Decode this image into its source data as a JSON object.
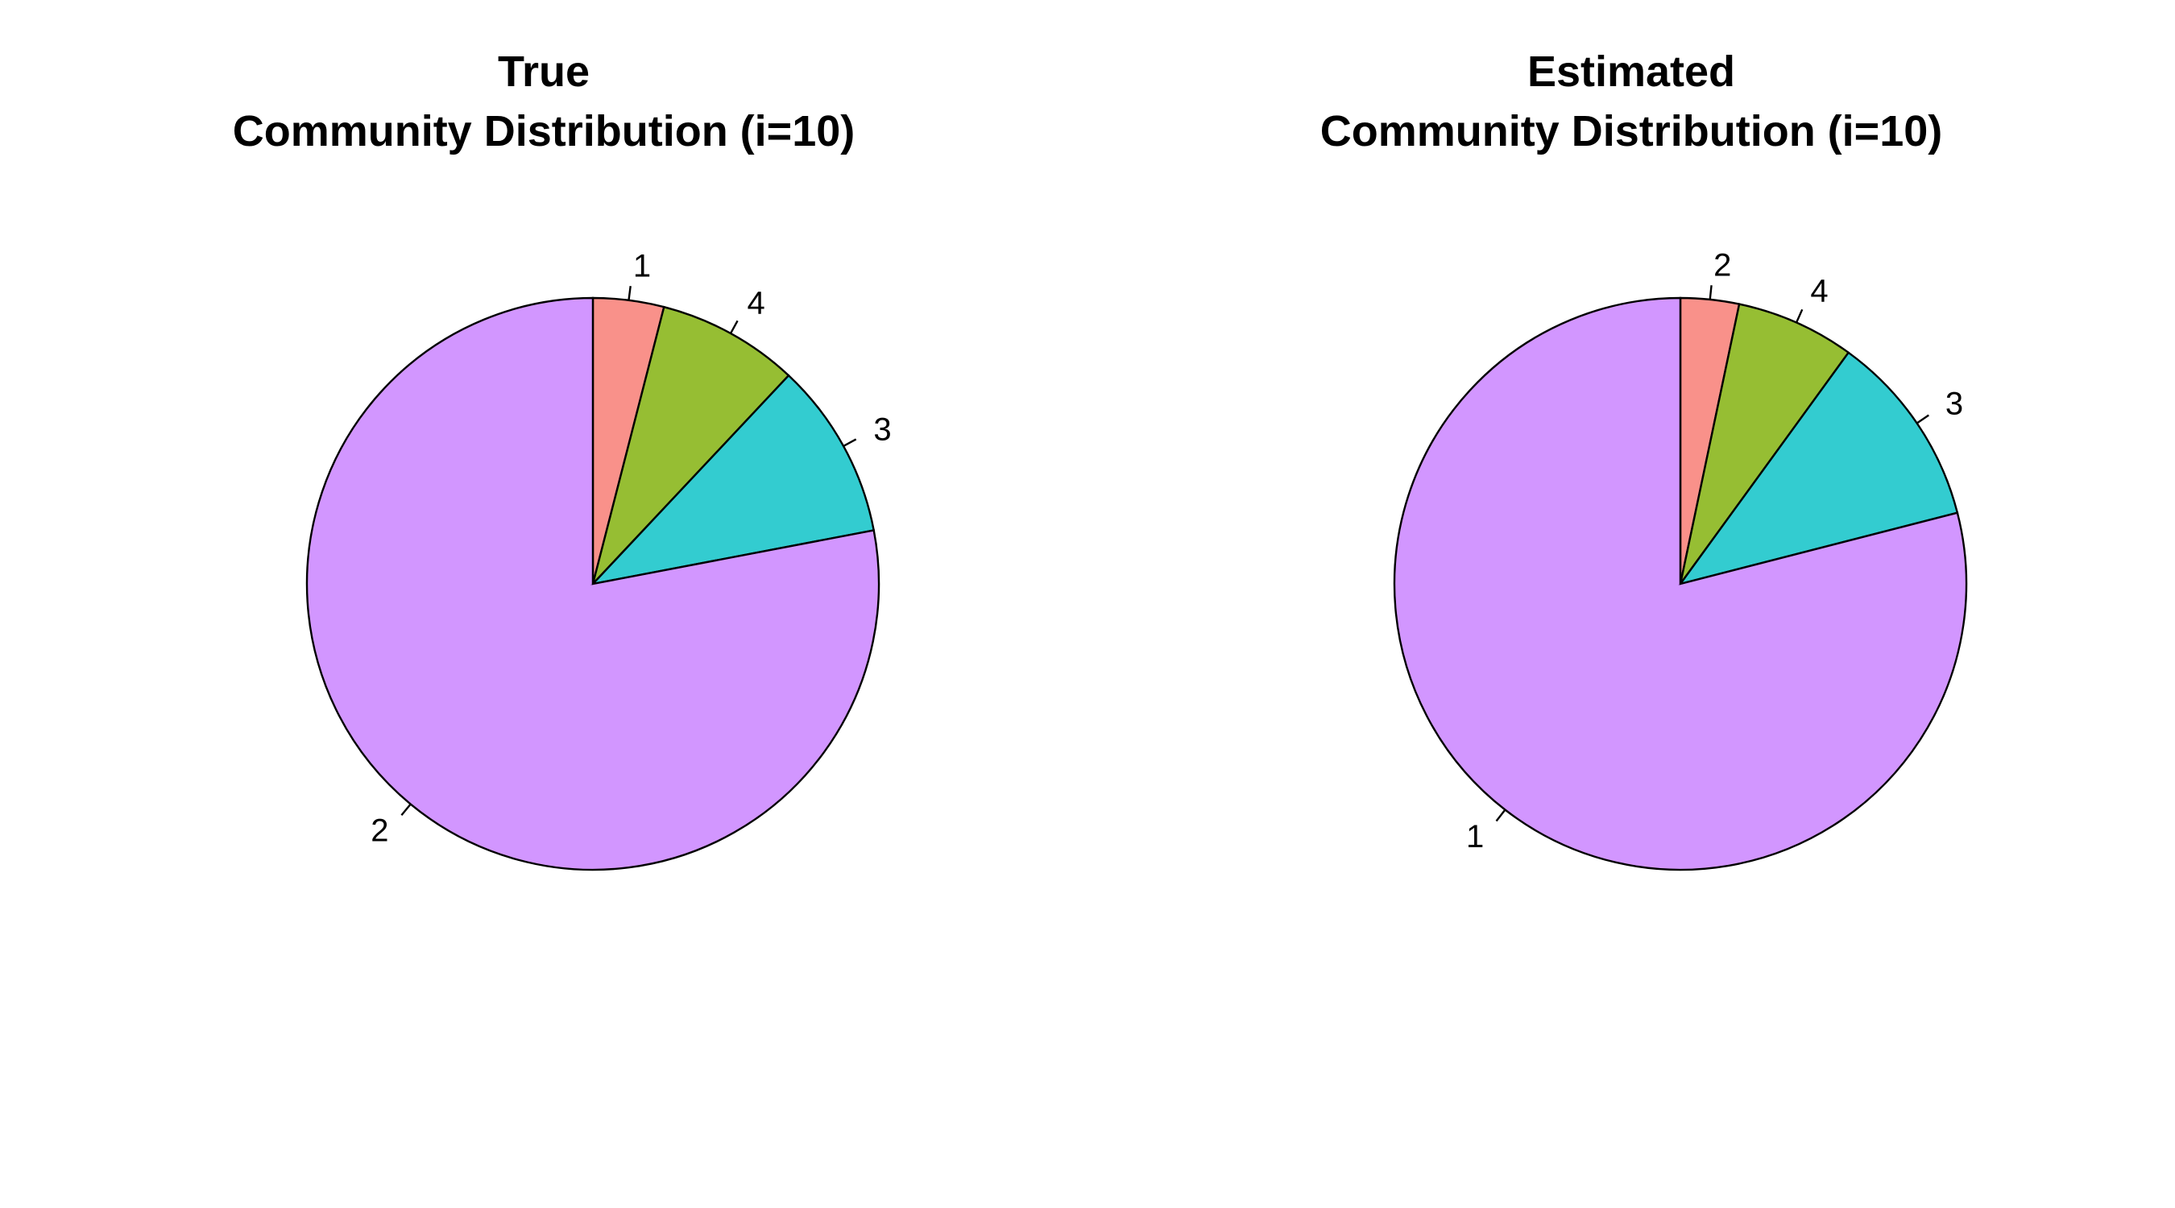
{
  "chart_data": [
    {
      "type": "pie",
      "title_lines": [
        "True",
        "Community Distribution (i=10)"
      ],
      "start_angle_deg": 90,
      "direction": "clockwise",
      "slices": [
        {
          "label": "1",
          "value": 0.04,
          "color": "#F8766D"
        },
        {
          "label": "4",
          "value": 0.08,
          "color": "#7CAE00"
        },
        {
          "label": "3",
          "value": 0.1,
          "color": "#00BFC4"
        },
        {
          "label": "2",
          "value": 0.78,
          "color": "#C77CFF"
        }
      ]
    },
    {
      "type": "pie",
      "title_lines": [
        "Estimated",
        "Community Distribution (i=10)"
      ],
      "start_angle_deg": 90,
      "direction": "clockwise",
      "slices": [
        {
          "label": "2",
          "value": 0.033,
          "color": "#F8766D"
        },
        {
          "label": "4",
          "value": 0.067,
          "color": "#7CAE00"
        },
        {
          "label": "3",
          "value": 0.11,
          "color": "#00BFC4"
        },
        {
          "label": "1",
          "value": 0.79,
          "color": "#C77CFF"
        }
      ]
    }
  ],
  "style": {
    "slice_fill_opacity": 0.8,
    "outline_color": "#000000"
  }
}
